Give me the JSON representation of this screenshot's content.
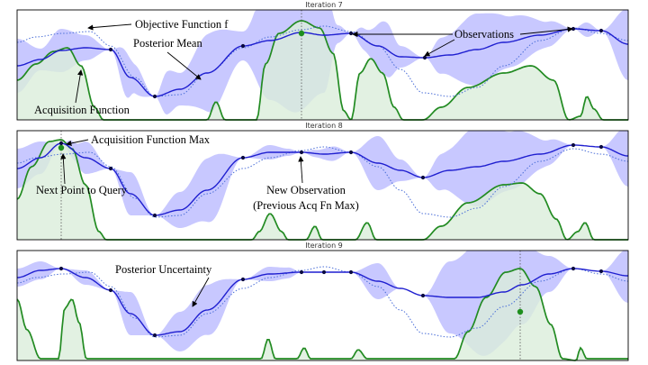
{
  "colors": {
    "band": "#aaaaff",
    "mean": "#1f1fd0",
    "objective": "#4b6fd8",
    "acquisition": "#228b22",
    "acquisition_fill": "#dbeedb",
    "observation": "#0a0a40",
    "query_point": "#1e8f1e"
  },
  "panels": [
    {
      "title": "Iteration 7"
    },
    {
      "title": "Iteration 8"
    },
    {
      "title": "Iteration 9"
    }
  ],
  "annotations": {
    "objective": "Objective Function f",
    "posterior_mean": "Posterior Mean",
    "observations": "Observations",
    "acquisition_function": "Acquisition Function",
    "acq_max": "Acquisition Function Max",
    "next_point": "Next Point to Query",
    "new_observation_line1": "New Observation",
    "new_observation_line2": "(Previous Acq Fn Max)",
    "posterior_uncertainty": "Posterior Uncertainty"
  }
}
